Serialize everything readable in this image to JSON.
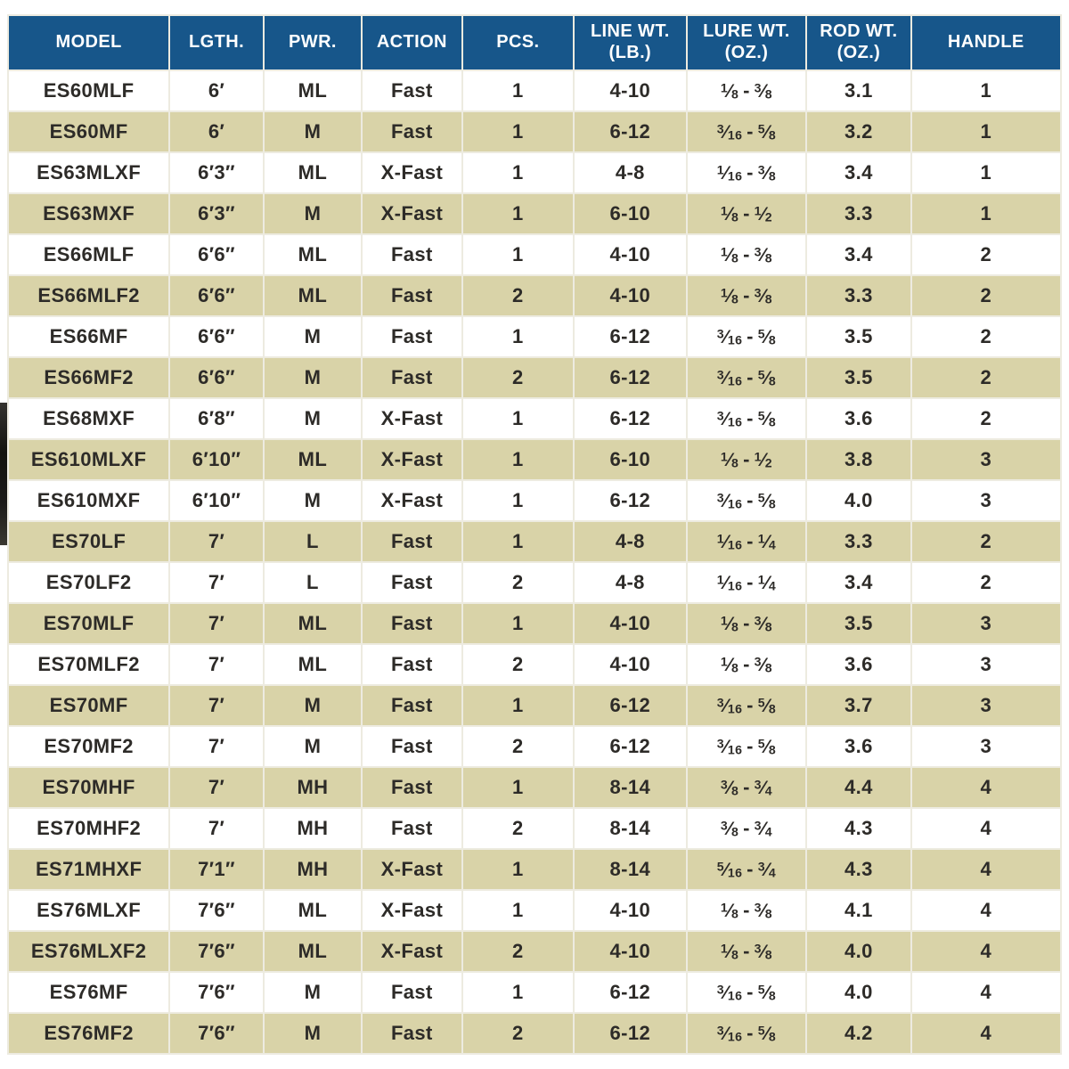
{
  "colors": {
    "header_bg": "#17568a",
    "header_text": "#ffffff",
    "row_bg": "#ffffff",
    "row_alt_bg": "#d9d3a8",
    "body_text": "#2d2b28",
    "divider": "#edebe0"
  },
  "table": {
    "columns": [
      {
        "key": "model",
        "label": "MODEL"
      },
      {
        "key": "length",
        "label": "LGTH."
      },
      {
        "key": "power",
        "label": "PWR."
      },
      {
        "key": "action",
        "label": "ACTION"
      },
      {
        "key": "pieces",
        "label": "PCS."
      },
      {
        "key": "line_wt",
        "label": "LINE WT.",
        "label2": "(LB.)"
      },
      {
        "key": "lure_wt",
        "label": "LURE WT.",
        "label2": "(OZ.)"
      },
      {
        "key": "rod_wt",
        "label": "ROD WT.",
        "label2": "(OZ.)"
      },
      {
        "key": "handle",
        "label": "HANDLE"
      }
    ],
    "col_widths_pct": [
      15.4,
      8.9,
      9.3,
      9.5,
      10.6,
      10.7,
      11.4,
      9.9,
      14.3
    ],
    "rows": [
      {
        "model": "ES60MLF",
        "length": "6′",
        "power": "ML",
        "action": "Fast",
        "pieces": "1",
        "line_wt": "4-10",
        "lure_wt": "1/8 - 3/8",
        "rod_wt": "3.1",
        "handle": "1"
      },
      {
        "model": "ES60MF",
        "length": "6′",
        "power": "M",
        "action": "Fast",
        "pieces": "1",
        "line_wt": "6-12",
        "lure_wt": "3/16 - 5/8",
        "rod_wt": "3.2",
        "handle": "1"
      },
      {
        "model": "ES63MLXF",
        "length": "6′3″",
        "power": "ML",
        "action": "X-Fast",
        "pieces": "1",
        "line_wt": "4-8",
        "lure_wt": "1/16 - 3/8",
        "rod_wt": "3.4",
        "handle": "1"
      },
      {
        "model": "ES63MXF",
        "length": "6′3″",
        "power": "M",
        "action": "X-Fast",
        "pieces": "1",
        "line_wt": "6-10",
        "lure_wt": "1/8 - 1/2",
        "rod_wt": "3.3",
        "handle": "1"
      },
      {
        "model": "ES66MLF",
        "length": "6′6″",
        "power": "ML",
        "action": "Fast",
        "pieces": "1",
        "line_wt": "4-10",
        "lure_wt": "1/8 - 3/8",
        "rod_wt": "3.4",
        "handle": "2"
      },
      {
        "model": "ES66MLF2",
        "length": "6′6″",
        "power": "ML",
        "action": "Fast",
        "pieces": "2",
        "line_wt": "4-10",
        "lure_wt": "1/8 - 3/8",
        "rod_wt": "3.3",
        "handle": "2"
      },
      {
        "model": "ES66MF",
        "length": "6′6″",
        "power": "M",
        "action": "Fast",
        "pieces": "1",
        "line_wt": "6-12",
        "lure_wt": "3/16 - 5/8",
        "rod_wt": "3.5",
        "handle": "2"
      },
      {
        "model": "ES66MF2",
        "length": "6′6″",
        "power": "M",
        "action": "Fast",
        "pieces": "2",
        "line_wt": "6-12",
        "lure_wt": "3/16 - 5/8",
        "rod_wt": "3.5",
        "handle": "2"
      },
      {
        "model": "ES68MXF",
        "length": "6′8″",
        "power": "M",
        "action": "X-Fast",
        "pieces": "1",
        "line_wt": "6-12",
        "lure_wt": "3/16 - 5/8",
        "rod_wt": "3.6",
        "handle": "2"
      },
      {
        "model": "ES610MLXF",
        "length": "6′10″",
        "power": "ML",
        "action": "X-Fast",
        "pieces": "1",
        "line_wt": "6-10",
        "lure_wt": "1/8 - 1/2",
        "rod_wt": "3.8",
        "handle": "3"
      },
      {
        "model": "ES610MXF",
        "length": "6′10″",
        "power": "M",
        "action": "X-Fast",
        "pieces": "1",
        "line_wt": "6-12",
        "lure_wt": "3/16 - 5/8",
        "rod_wt": "4.0",
        "handle": "3"
      },
      {
        "model": "ES70LF",
        "length": "7′",
        "power": "L",
        "action": "Fast",
        "pieces": "1",
        "line_wt": "4-8",
        "lure_wt": "1/16 - 1/4",
        "rod_wt": "3.3",
        "handle": "2"
      },
      {
        "model": "ES70LF2",
        "length": "7′",
        "power": "L",
        "action": "Fast",
        "pieces": "2",
        "line_wt": "4-8",
        "lure_wt": "1/16 - 1/4",
        "rod_wt": "3.4",
        "handle": "2"
      },
      {
        "model": "ES70MLF",
        "length": "7′",
        "power": "ML",
        "action": "Fast",
        "pieces": "1",
        "line_wt": "4-10",
        "lure_wt": "1/8 - 3/8",
        "rod_wt": "3.5",
        "handle": "3"
      },
      {
        "model": "ES70MLF2",
        "length": "7′",
        "power": "ML",
        "action": "Fast",
        "pieces": "2",
        "line_wt": "4-10",
        "lure_wt": "1/8 - 3/8",
        "rod_wt": "3.6",
        "handle": "3"
      },
      {
        "model": "ES70MF",
        "length": "7′",
        "power": "M",
        "action": "Fast",
        "pieces": "1",
        "line_wt": "6-12",
        "lure_wt": "3/16 - 5/8",
        "rod_wt": "3.7",
        "handle": "3"
      },
      {
        "model": "ES70MF2",
        "length": "7′",
        "power": "M",
        "action": "Fast",
        "pieces": "2",
        "line_wt": "6-12",
        "lure_wt": "3/16 - 5/8",
        "rod_wt": "3.6",
        "handle": "3"
      },
      {
        "model": "ES70MHF",
        "length": "7′",
        "power": "MH",
        "action": "Fast",
        "pieces": "1",
        "line_wt": "8-14",
        "lure_wt": "3/8 - 3/4",
        "rod_wt": "4.4",
        "handle": "4"
      },
      {
        "model": "ES70MHF2",
        "length": "7′",
        "power": "MH",
        "action": "Fast",
        "pieces": "2",
        "line_wt": "8-14",
        "lure_wt": "3/8 - 3/4",
        "rod_wt": "4.3",
        "handle": "4"
      },
      {
        "model": "ES71MHXF",
        "length": "7′1″",
        "power": "MH",
        "action": "X-Fast",
        "pieces": "1",
        "line_wt": "8-14",
        "lure_wt": "5/16 - 3/4",
        "rod_wt": "4.3",
        "handle": "4"
      },
      {
        "model": "ES76MLXF",
        "length": "7′6″",
        "power": "ML",
        "action": "X-Fast",
        "pieces": "1",
        "line_wt": "4-10",
        "lure_wt": "1/8 - 3/8",
        "rod_wt": "4.1",
        "handle": "4"
      },
      {
        "model": "ES76MLXF2",
        "length": "7′6″",
        "power": "ML",
        "action": "X-Fast",
        "pieces": "2",
        "line_wt": "4-10",
        "lure_wt": "1/8 - 3/8",
        "rod_wt": "4.0",
        "handle": "4"
      },
      {
        "model": "ES76MF",
        "length": "7′6″",
        "power": "M",
        "action": "Fast",
        "pieces": "1",
        "line_wt": "6-12",
        "lure_wt": "3/16 - 5/8",
        "rod_wt": "4.0",
        "handle": "4"
      },
      {
        "model": "ES76MF2",
        "length": "7′6″",
        "power": "M",
        "action": "Fast",
        "pieces": "2",
        "line_wt": "6-12",
        "lure_wt": "3/16 - 5/8",
        "rod_wt": "4.2",
        "handle": "4"
      }
    ]
  }
}
